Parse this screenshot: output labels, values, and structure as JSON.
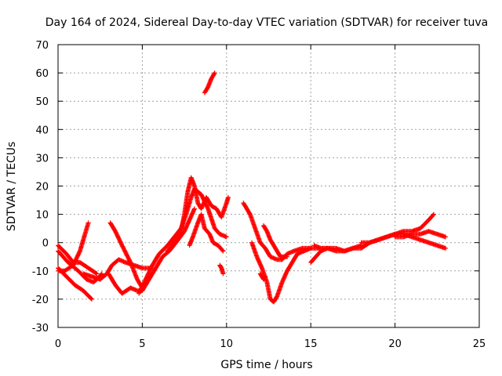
{
  "chart_data": {
    "type": "scatter",
    "title": "Day 164 of 2024, Sidereal Day-to-day VTEC variation (SDTVAR) for receiver tuva",
    "xlabel": "GPS time / hours",
    "ylabel": "SDTVAR / TECUs",
    "xlim": [
      0,
      25
    ],
    "ylim": [
      -30,
      70
    ],
    "xticks": [
      0,
      5,
      10,
      15,
      20,
      25
    ],
    "yticks": [
      -30,
      -20,
      -10,
      0,
      10,
      20,
      30,
      40,
      50,
      60,
      70
    ],
    "grid": true,
    "marker": "+",
    "series_color": "#ff0000",
    "traces": [
      {
        "name": "trace-1",
        "points": [
          [
            0.0,
            -3
          ],
          [
            0.6,
            -7
          ],
          [
            1.2,
            -10
          ],
          [
            1.7,
            -13
          ],
          [
            2.1,
            -14
          ],
          [
            2.3,
            -13
          ],
          [
            2.6,
            -11
          ]
        ]
      },
      {
        "name": "trace-2",
        "points": [
          [
            0.0,
            -9
          ],
          [
            0.5,
            -12
          ],
          [
            1.0,
            -15
          ],
          [
            1.5,
            -17
          ],
          [
            2.0,
            -20
          ]
        ]
      },
      {
        "name": "trace-3",
        "points": [
          [
            0.0,
            -10
          ],
          [
            0.4,
            -10
          ],
          [
            0.9,
            -8
          ],
          [
            1.3,
            -3
          ],
          [
            1.6,
            3
          ],
          [
            1.8,
            7
          ]
        ]
      },
      {
        "name": "trace-4",
        "points": [
          [
            0.0,
            -1
          ],
          [
            0.5,
            -4
          ],
          [
            0.9,
            -7
          ],
          [
            1.3,
            -7
          ],
          [
            1.8,
            -9
          ],
          [
            2.3,
            -11
          ]
        ]
      },
      {
        "name": "trace-5",
        "points": [
          [
            1.5,
            -11
          ],
          [
            2.0,
            -12
          ],
          [
            2.5,
            -13
          ],
          [
            2.9,
            -11
          ],
          [
            3.2,
            -8
          ],
          [
            3.6,
            -6
          ],
          [
            4.0,
            -7
          ],
          [
            4.5,
            -8
          ],
          [
            5.0,
            -9
          ],
          [
            5.5,
            -9
          ]
        ]
      },
      {
        "name": "trace-6",
        "points": [
          [
            3.1,
            7
          ],
          [
            3.4,
            4
          ],
          [
            3.8,
            -1
          ],
          [
            4.3,
            -7
          ],
          [
            4.7,
            -13
          ],
          [
            5.0,
            -16
          ]
        ]
      },
      {
        "name": "trace-7",
        "points": [
          [
            3.0,
            -11
          ],
          [
            3.4,
            -15
          ],
          [
            3.8,
            -18
          ],
          [
            4.3,
            -16
          ],
          [
            4.7,
            -17
          ],
          [
            5.0,
            -17
          ],
          [
            5.3,
            -14
          ],
          [
            5.7,
            -10
          ],
          [
            6.2,
            -5
          ],
          [
            6.6,
            -3
          ],
          [
            7.0,
            0
          ],
          [
            7.5,
            4
          ],
          [
            7.8,
            8
          ],
          [
            8.1,
            12
          ]
        ]
      },
      {
        "name": "trace-8",
        "points": [
          [
            4.8,
            -18
          ],
          [
            5.2,
            -13
          ],
          [
            5.6,
            -8
          ],
          [
            6.0,
            -4
          ],
          [
            6.5,
            -1
          ],
          [
            6.9,
            2
          ],
          [
            7.3,
            5
          ],
          [
            7.6,
            10
          ],
          [
            7.9,
            16
          ],
          [
            8.1,
            19
          ],
          [
            8.5,
            17
          ],
          [
            8.9,
            12
          ],
          [
            9.3,
            5
          ],
          [
            9.6,
            3
          ],
          [
            10.0,
            2
          ]
        ]
      },
      {
        "name": "trace-9",
        "points": [
          [
            6.5,
            -3
          ],
          [
            6.9,
            0
          ],
          [
            7.3,
            4
          ],
          [
            7.5,
            10
          ],
          [
            7.7,
            18
          ],
          [
            7.9,
            23
          ],
          [
            8.1,
            20
          ],
          [
            8.3,
            14
          ],
          [
            8.5,
            12
          ],
          [
            8.8,
            16
          ],
          [
            9.1,
            13
          ],
          [
            9.4,
            12
          ],
          [
            9.7,
            9
          ],
          [
            10.0,
            14
          ],
          [
            10.1,
            16
          ]
        ]
      },
      {
        "name": "trace-10",
        "points": [
          [
            7.8,
            -1
          ],
          [
            8.0,
            2
          ],
          [
            8.3,
            7
          ],
          [
            8.5,
            10
          ],
          [
            8.7,
            5
          ],
          [
            9.0,
            3
          ],
          [
            9.2,
            0
          ],
          [
            9.5,
            -1
          ],
          [
            9.8,
            -3
          ]
        ]
      },
      {
        "name": "trace-11",
        "points": [
          [
            8.7,
            53
          ],
          [
            8.9,
            55
          ],
          [
            9.1,
            58
          ],
          [
            9.3,
            60
          ]
        ]
      },
      {
        "name": "trace-12",
        "points": [
          [
            9.6,
            -8
          ],
          [
            9.7,
            -9
          ],
          [
            9.8,
            -11
          ]
        ]
      },
      {
        "name": "trace-13",
        "points": [
          [
            11.0,
            14
          ],
          [
            11.4,
            10
          ],
          [
            11.7,
            5
          ],
          [
            12.0,
            0
          ],
          [
            12.3,
            -2
          ],
          [
            12.6,
            -5
          ],
          [
            13.0,
            -6
          ],
          [
            13.3,
            -6
          ],
          [
            13.6,
            -4
          ],
          [
            14.0,
            -3
          ],
          [
            14.5,
            -2
          ],
          [
            15.0,
            -2
          ],
          [
            15.5,
            -2
          ]
        ]
      },
      {
        "name": "trace-14",
        "points": [
          [
            11.5,
            0
          ],
          [
            11.8,
            -5
          ],
          [
            12.1,
            -9
          ],
          [
            12.4,
            -14
          ],
          [
            12.6,
            -20
          ],
          [
            12.8,
            -21
          ],
          [
            13.0,
            -19
          ],
          [
            13.3,
            -14
          ],
          [
            13.6,
            -10
          ],
          [
            13.9,
            -7
          ],
          [
            14.2,
            -4
          ],
          [
            14.6,
            -3
          ],
          [
            15.0,
            -2
          ]
        ]
      },
      {
        "name": "trace-15",
        "points": [
          [
            12.2,
            6
          ],
          [
            12.4,
            4
          ],
          [
            12.6,
            1
          ],
          [
            12.9,
            -2
          ],
          [
            13.2,
            -5
          ],
          [
            13.6,
            -5
          ]
        ]
      },
      {
        "name": "trace-16",
        "points": [
          [
            12.0,
            -11
          ],
          [
            12.2,
            -13
          ],
          [
            12.3,
            -12
          ]
        ]
      },
      {
        "name": "trace-17",
        "points": [
          [
            15.0,
            -7
          ],
          [
            15.3,
            -5
          ],
          [
            15.6,
            -3
          ],
          [
            16.0,
            -2
          ],
          [
            16.5,
            -2
          ],
          [
            17.0,
            -3
          ],
          [
            17.5,
            -2
          ],
          [
            18.0,
            -1
          ]
        ]
      },
      {
        "name": "trace-18",
        "points": [
          [
            15.2,
            -1
          ],
          [
            15.6,
            -2
          ],
          [
            16.0,
            -2
          ],
          [
            16.5,
            -3
          ],
          [
            17.0,
            -3
          ],
          [
            17.5,
            -2
          ],
          [
            18.0,
            -2
          ],
          [
            18.5,
            0
          ],
          [
            19.0,
            1
          ],
          [
            19.5,
            2
          ],
          [
            20.0,
            3
          ],
          [
            20.5,
            3
          ],
          [
            21.0,
            2
          ],
          [
            21.5,
            1
          ],
          [
            22.0,
            0
          ],
          [
            22.5,
            -1
          ],
          [
            23.0,
            -2
          ]
        ]
      },
      {
        "name": "trace-19",
        "points": [
          [
            18.0,
            0
          ],
          [
            18.5,
            0
          ],
          [
            19.0,
            1
          ],
          [
            19.5,
            2
          ],
          [
            20.0,
            3
          ],
          [
            20.5,
            4
          ],
          [
            21.0,
            4
          ],
          [
            21.5,
            5
          ],
          [
            22.0,
            8
          ],
          [
            22.3,
            10
          ]
        ]
      },
      {
        "name": "trace-20",
        "points": [
          [
            20.0,
            2
          ],
          [
            20.5,
            2
          ],
          [
            21.0,
            3
          ],
          [
            21.5,
            3
          ],
          [
            22.0,
            4
          ],
          [
            22.5,
            3
          ],
          [
            23.0,
            2
          ]
        ]
      }
    ]
  }
}
